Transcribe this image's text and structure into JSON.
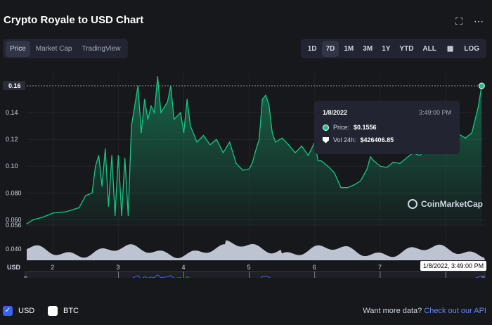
{
  "title": "Crypto Royale to USD Chart",
  "header_icons": [
    "expand-icon",
    "more-options-icon"
  ],
  "left_tabs": [
    {
      "label": "Price",
      "active": true
    },
    {
      "label": "Market Cap",
      "active": false
    },
    {
      "label": "TradingView",
      "active": false
    }
  ],
  "right_tabs": [
    {
      "label": "1D",
      "active": false
    },
    {
      "label": "7D",
      "active": true
    },
    {
      "label": "1M",
      "active": false
    },
    {
      "label": "3M",
      "active": false
    },
    {
      "label": "1Y",
      "active": false
    },
    {
      "label": "YTD",
      "active": false
    },
    {
      "label": "ALL",
      "active": false
    },
    {
      "label": "LOG",
      "active": false
    }
  ],
  "tooltip": {
    "date": "1/8/2022",
    "time": "3:49:00 PM",
    "price_label": "Price:",
    "price_value": "$0.1556",
    "vol_label": "Vol 24h:",
    "vol_value": "$426406.85"
  },
  "watermark": "CoinMarketCap",
  "current_price_label": "0.16",
  "volume_axis_label": "0.040",
  "x_axis_unit": "USD",
  "crosshair_label": "1/8/2022, 3:49:00 PM",
  "footer": {
    "usd_label": "USD",
    "btc_label": "BTC",
    "usd_checked": true,
    "btc_checked": false,
    "more_text": "Want more data?",
    "more_link": "Check out our API"
  },
  "colors": {
    "price_line": "#16c784",
    "accent": "#3861fb",
    "background": "#17181b"
  },
  "chart_data": {
    "type": "area",
    "y_ticks": [
      "0.14",
      "0.12",
      "0.10",
      "0.080",
      "0.060",
      "0.056"
    ],
    "x_ticks": [
      "2",
      "3",
      "4",
      "5",
      "6",
      "7",
      "8"
    ],
    "navigator_ticks": [
      "3",
      "4",
      "5",
      "6",
      "7",
      "8"
    ],
    "ylim": [
      0.056,
      0.17
    ],
    "xlim": [
      1.6,
      8.6
    ],
    "series": [
      {
        "values": [
          [
            1.6,
            0.057
          ],
          [
            1.7,
            0.06
          ],
          [
            1.85,
            0.062
          ],
          [
            2.0,
            0.065
          ],
          [
            2.2,
            0.066
          ],
          [
            2.4,
            0.069
          ],
          [
            2.5,
            0.078
          ],
          [
            2.6,
            0.08
          ],
          [
            2.65,
            0.1
          ],
          [
            2.7,
            0.108
          ],
          [
            2.75,
            0.085
          ],
          [
            2.8,
            0.113
          ],
          [
            2.85,
            0.07
          ],
          [
            2.9,
            0.108
          ],
          [
            2.95,
            0.063
          ],
          [
            3.0,
            0.108
          ],
          [
            3.05,
            0.063
          ],
          [
            3.1,
            0.106
          ],
          [
            3.15,
            0.063
          ],
          [
            3.2,
            0.13
          ],
          [
            3.3,
            0.16
          ],
          [
            3.35,
            0.125
          ],
          [
            3.4,
            0.15
          ],
          [
            3.45,
            0.135
          ],
          [
            3.5,
            0.145
          ],
          [
            3.55,
            0.14
          ],
          [
            3.6,
            0.167
          ],
          [
            3.65,
            0.14
          ],
          [
            3.75,
            0.148
          ],
          [
            3.8,
            0.16
          ],
          [
            3.85,
            0.135
          ],
          [
            3.95,
            0.14
          ],
          [
            4.0,
            0.125
          ],
          [
            4.05,
            0.15
          ],
          [
            4.1,
            0.13
          ],
          [
            4.2,
            0.118
          ],
          [
            4.3,
            0.123
          ],
          [
            4.4,
            0.116
          ],
          [
            4.5,
            0.12
          ],
          [
            4.6,
            0.11
          ],
          [
            4.7,
            0.118
          ],
          [
            4.8,
            0.102
          ],
          [
            4.9,
            0.097
          ],
          [
            5.0,
            0.098
          ],
          [
            5.05,
            0.103
          ],
          [
            5.1,
            0.112
          ],
          [
            5.15,
            0.12
          ],
          [
            5.2,
            0.15
          ],
          [
            5.25,
            0.153
          ],
          [
            5.3,
            0.146
          ],
          [
            5.35,
            0.125
          ],
          [
            5.4,
            0.118
          ],
          [
            5.5,
            0.121
          ],
          [
            5.6,
            0.116
          ],
          [
            5.7,
            0.11
          ],
          [
            5.8,
            0.115
          ],
          [
            5.9,
            0.108
          ],
          [
            6.0,
            0.118
          ],
          [
            6.05,
            0.104
          ],
          [
            6.1,
            0.104
          ],
          [
            6.2,
            0.1
          ],
          [
            6.3,
            0.095
          ],
          [
            6.4,
            0.084
          ],
          [
            6.5,
            0.084
          ],
          [
            6.6,
            0.086
          ],
          [
            6.7,
            0.089
          ],
          [
            6.8,
            0.098
          ],
          [
            6.85,
            0.107
          ],
          [
            6.9,
            0.104
          ],
          [
            7.0,
            0.1
          ],
          [
            7.1,
            0.099
          ],
          [
            7.2,
            0.103
          ],
          [
            7.3,
            0.102
          ],
          [
            7.4,
            0.106
          ],
          [
            7.5,
            0.11
          ],
          [
            7.6,
            0.108
          ],
          [
            7.7,
            0.112
          ],
          [
            7.8,
            0.113
          ],
          [
            7.9,
            0.11
          ],
          [
            8.0,
            0.116
          ],
          [
            8.1,
            0.118
          ],
          [
            8.2,
            0.124
          ],
          [
            8.3,
            0.121
          ],
          [
            8.4,
            0.125
          ],
          [
            8.5,
            0.145
          ],
          [
            8.55,
            0.16
          ]
        ]
      }
    ]
  }
}
